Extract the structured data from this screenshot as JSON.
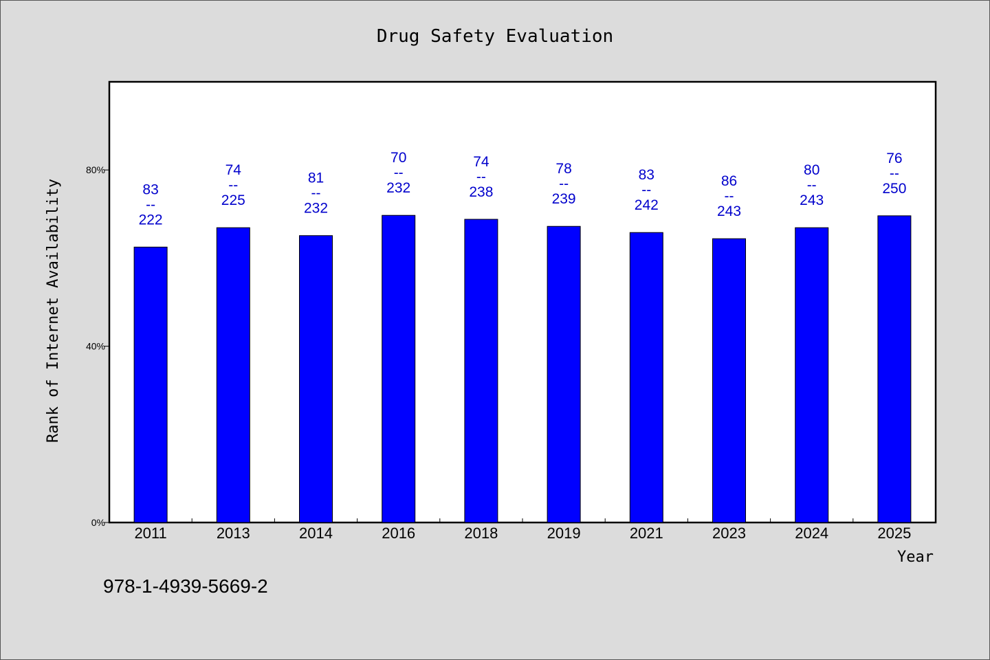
{
  "chart_data": {
    "type": "bar",
    "title": "Drug Safety Evaluation",
    "xlabel": "Year",
    "ylabel": "Rank of Internet Availability",
    "categories": [
      "2011",
      "2013",
      "2014",
      "2016",
      "2018",
      "2019",
      "2021",
      "2023",
      "2024",
      "2025"
    ],
    "values": [
      62.5,
      66.9,
      65.1,
      69.7,
      68.8,
      67.2,
      65.8,
      64.4,
      66.9,
      69.6
    ],
    "annotations": [
      {
        "top": "83",
        "sep": "--",
        "bottom": "222"
      },
      {
        "top": "74",
        "sep": "--",
        "bottom": "225"
      },
      {
        "top": "81",
        "sep": "--",
        "bottom": "232"
      },
      {
        "top": "70",
        "sep": "--",
        "bottom": "232"
      },
      {
        "top": "74",
        "sep": "--",
        "bottom": "238"
      },
      {
        "top": "78",
        "sep": "--",
        "bottom": "239"
      },
      {
        "top": "83",
        "sep": "--",
        "bottom": "242"
      },
      {
        "top": "86",
        "sep": "--",
        "bottom": "243"
      },
      {
        "top": "80",
        "sep": "--",
        "bottom": "243"
      },
      {
        "top": "76",
        "sep": "--",
        "bottom": "250"
      }
    ],
    "yticks": [
      0,
      40,
      80
    ],
    "ytick_labels": [
      "0%",
      "40%",
      "80%"
    ],
    "ylim": [
      0,
      100
    ],
    "grid": false,
    "bar_color": "#0000ff",
    "label_color": "#0000cc"
  },
  "footer_text": "978-1-4939-5669-2"
}
